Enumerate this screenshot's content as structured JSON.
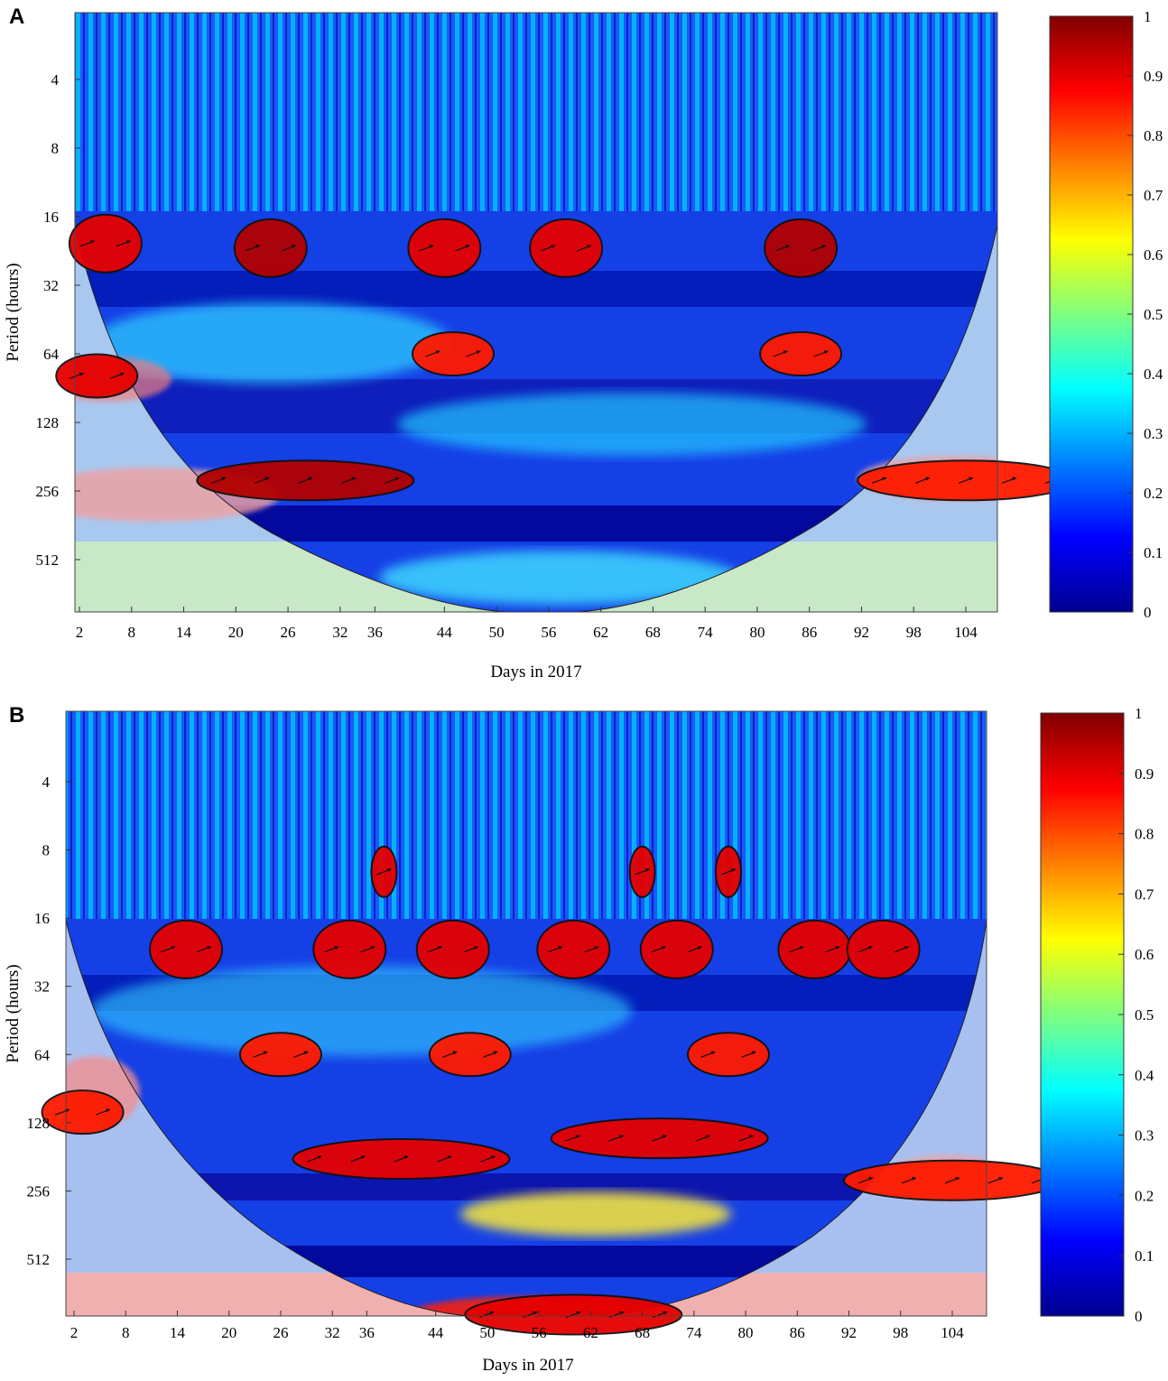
{
  "chart_data": [
    {
      "panel": "A",
      "type": "heatmap",
      "title": "",
      "xlabel": "Days in 2017",
      "ylabel": "Period (hours)",
      "x_ticks": [
        2,
        8,
        14,
        20,
        26,
        32,
        36,
        44,
        50,
        56,
        62,
        68,
        74,
        80,
        86,
        92,
        98,
        104
      ],
      "y_ticks": [
        4,
        8,
        16,
        32,
        64,
        128,
        256,
        512
      ],
      "y_scale": "log2",
      "colorbar": {
        "min": 0,
        "max": 1,
        "ticks": [
          "0",
          "0.1",
          "0.2",
          "0.3",
          "0.4",
          "0.5",
          "0.6",
          "0.7",
          "0.8",
          "0.9",
          "1"
        ],
        "colormap": "jet"
      },
      "cone_of_influence": true,
      "significant_regions": [
        {
          "x": 5,
          "period": 21,
          "value": 0.9
        },
        {
          "x": 24,
          "period": 22,
          "value": 0.95
        },
        {
          "x": 44,
          "period": 22,
          "value": 0.9
        },
        {
          "x": 58,
          "period": 22,
          "value": 0.9
        },
        {
          "x": 85,
          "period": 22,
          "value": 0.95
        },
        {
          "x": 45,
          "period": 64,
          "value": 0.85
        },
        {
          "x": 85,
          "period": 64,
          "value": 0.85
        },
        {
          "x": 28,
          "period": 230,
          "value": 0.95
        },
        {
          "x": 4,
          "period": 80,
          "value": 0.9
        },
        {
          "x": 104,
          "period": 230,
          "value": 0.85
        }
      ]
    },
    {
      "panel": "B",
      "type": "heatmap",
      "title": "",
      "xlabel": "Days in 2017",
      "ylabel": "Period (hours)",
      "x_ticks": [
        2,
        8,
        14,
        20,
        26,
        32,
        36,
        44,
        50,
        56,
        62,
        68,
        74,
        80,
        86,
        92,
        98,
        104
      ],
      "y_ticks": [
        4,
        8,
        16,
        32,
        64,
        128,
        256,
        512
      ],
      "y_scale": "log2",
      "colorbar": {
        "min": 0,
        "max": 1,
        "ticks": [
          "0",
          "0.1",
          "0.2",
          "0.3",
          "0.4",
          "0.5",
          "0.6",
          "0.7",
          "0.8",
          "0.9",
          "1"
        ],
        "colormap": "jet"
      },
      "cone_of_influence": true,
      "significant_regions": [
        {
          "x": 15,
          "period": 22,
          "value": 0.9
        },
        {
          "x": 34,
          "period": 22,
          "value": 0.9
        },
        {
          "x": 46,
          "period": 22,
          "value": 0.9
        },
        {
          "x": 60,
          "period": 22,
          "value": 0.9
        },
        {
          "x": 72,
          "period": 22,
          "value": 0.9
        },
        {
          "x": 88,
          "period": 22,
          "value": 0.9
        },
        {
          "x": 96,
          "period": 22,
          "value": 0.9
        },
        {
          "x": 38,
          "period": 10,
          "value": 0.9
        },
        {
          "x": 68,
          "period": 10,
          "value": 0.9
        },
        {
          "x": 78,
          "period": 10,
          "value": 0.9
        },
        {
          "x": 26,
          "period": 64,
          "value": 0.85
        },
        {
          "x": 48,
          "period": 64,
          "value": 0.85
        },
        {
          "x": 78,
          "period": 64,
          "value": 0.85
        },
        {
          "x": 40,
          "period": 185,
          "value": 0.9
        },
        {
          "x": 70,
          "period": 150,
          "value": 0.9
        },
        {
          "x": 3,
          "period": 115,
          "value": 0.85
        },
        {
          "x": 104,
          "period": 230,
          "value": 0.85
        },
        {
          "x": 60,
          "period": 900,
          "value": 0.9
        }
      ]
    }
  ]
}
